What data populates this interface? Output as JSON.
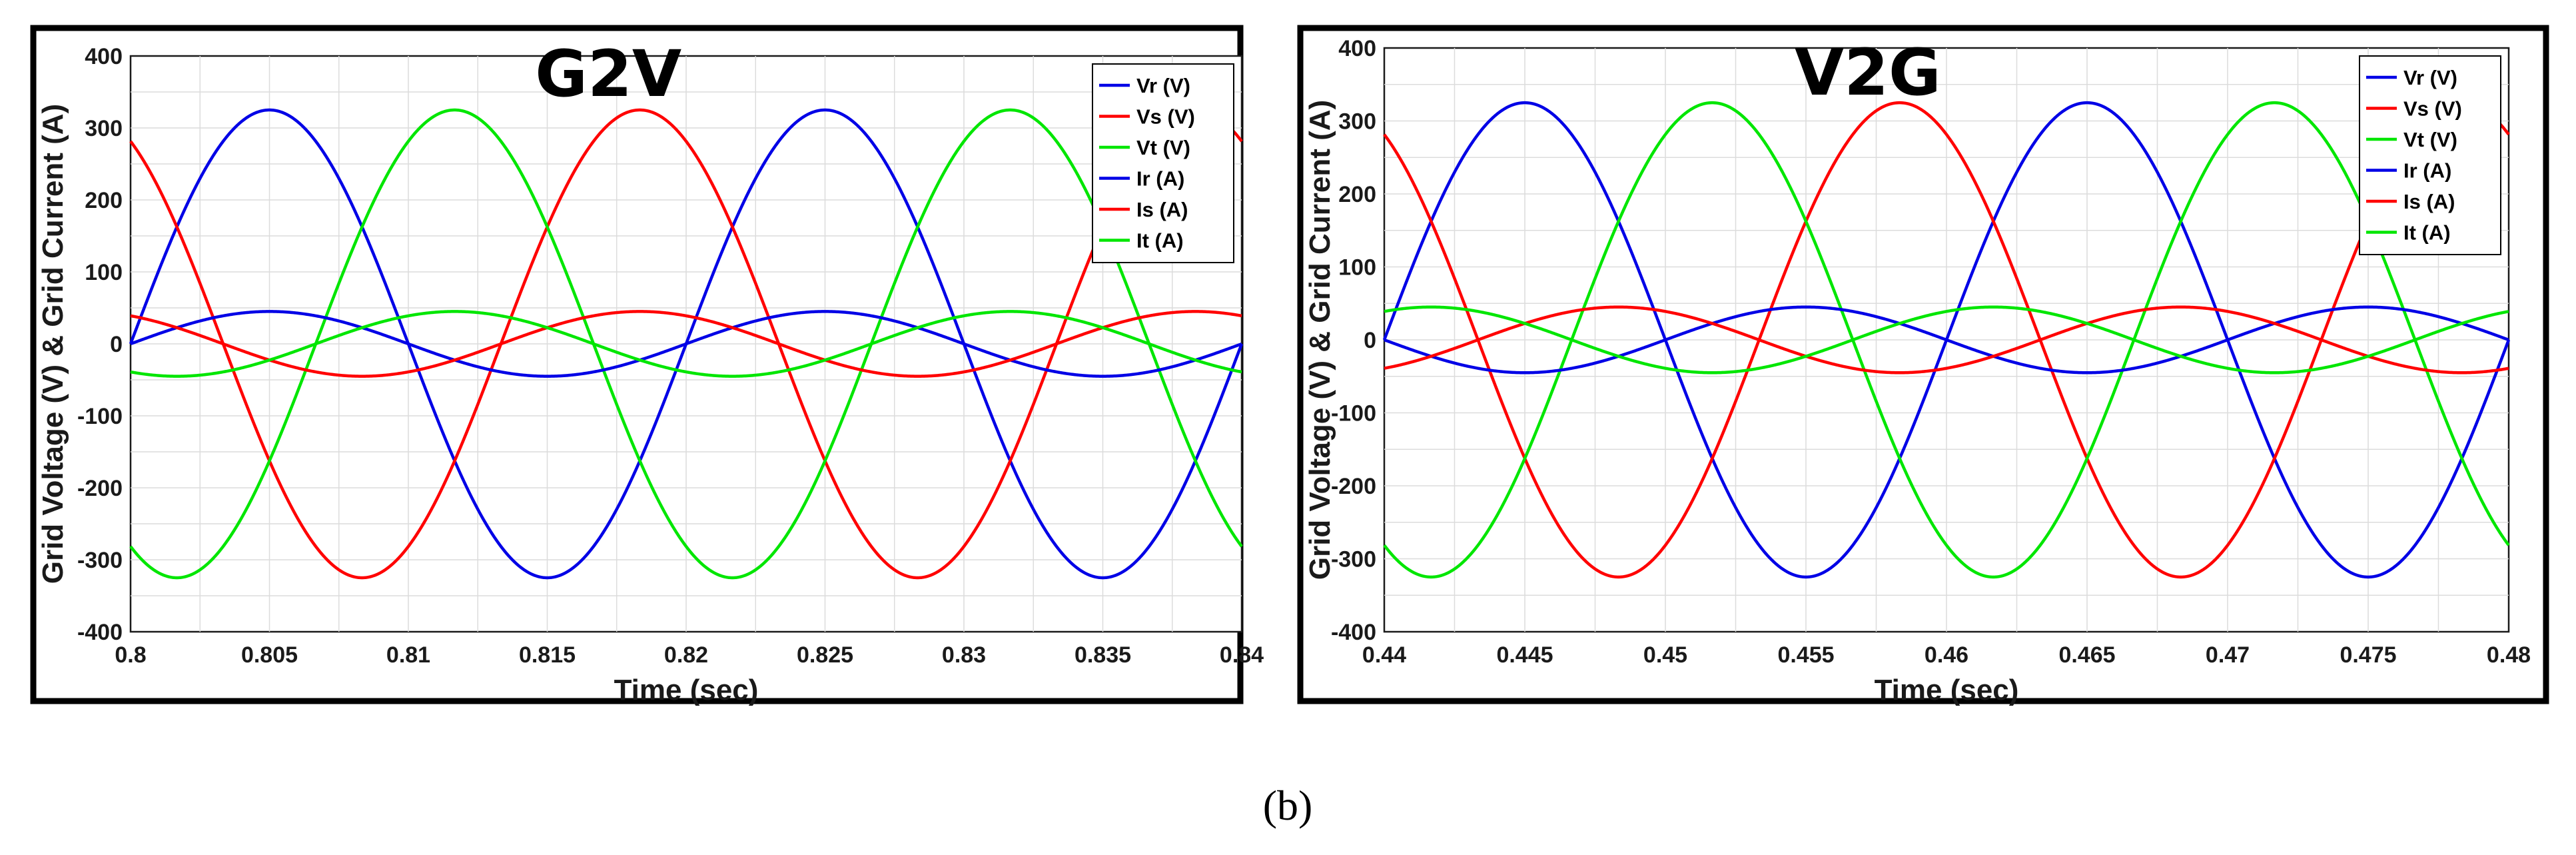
{
  "colors": {
    "blue": "#0000e6",
    "red": "#ff0000",
    "green": "#00e600"
  },
  "caption": {
    "text": "(b)"
  },
  "chart_data": [
    {
      "type": "line",
      "title": "G2V",
      "xlabel": "Time (sec)",
      "ylabel": "Grid Voltage (V) & Grid Current (A)",
      "xlim": [
        0.8,
        0.84
      ],
      "ylim": [
        -400,
        400
      ],
      "xticks": [
        0.8,
        0.805,
        0.81,
        0.815,
        0.82,
        0.825,
        0.83,
        0.835,
        0.84
      ],
      "xtick_labels": [
        "0.8",
        "0.805",
        "0.81",
        "0.815",
        "0.82",
        "0.825",
        "0.83",
        "0.835",
        "0.84"
      ],
      "yticks": [
        -400,
        -300,
        -200,
        -100,
        0,
        100,
        200,
        300,
        400
      ],
      "ytick_labels": [
        "-400",
        "-300",
        "-200",
        "-100",
        "0",
        "100",
        "200",
        "300",
        "400"
      ],
      "grid": true,
      "legend_position": "top-right",
      "frequency_hz": 50,
      "series": [
        {
          "name": "Vr (V)",
          "color": "#0000e6",
          "amplitude": 325,
          "phase_deg": 0,
          "reference_time": 0.8
        },
        {
          "name": "Vs (V)",
          "color": "#ff0000",
          "amplitude": 325,
          "phase_deg": 120,
          "reference_time": 0.8
        },
        {
          "name": "Vt (V)",
          "color": "#00e600",
          "amplitude": 325,
          "phase_deg": -120,
          "reference_time": 0.8
        },
        {
          "name": "Ir (A)",
          "color": "#0000e6",
          "amplitude": 45,
          "phase_deg": 0,
          "reference_time": 0.8
        },
        {
          "name": "Is (A)",
          "color": "#ff0000",
          "amplitude": 45,
          "phase_deg": 120,
          "reference_time": 0.8
        },
        {
          "name": "It (A)",
          "color": "#00e600",
          "amplitude": 45,
          "phase_deg": -120,
          "reference_time": 0.8
        }
      ]
    },
    {
      "type": "line",
      "title": "V2G",
      "xlabel": "Time (sec)",
      "ylabel": "Grid Voltage (V) & Grid Current (A)",
      "xlim": [
        0.44,
        0.48
      ],
      "ylim": [
        -400,
        400
      ],
      "xticks": [
        0.44,
        0.445,
        0.45,
        0.455,
        0.46,
        0.465,
        0.47,
        0.475,
        0.48
      ],
      "xtick_labels": [
        "0.44",
        "0.445",
        "0.45",
        "0.455",
        "0.46",
        "0.465",
        "0.47",
        "0.475",
        "0.48"
      ],
      "yticks": [
        -400,
        -300,
        -200,
        -100,
        0,
        100,
        200,
        300,
        400
      ],
      "ytick_labels": [
        "-400",
        "-300",
        "-200",
        "-100",
        "0",
        "100",
        "200",
        "300",
        "400"
      ],
      "grid": true,
      "legend_position": "top-right",
      "frequency_hz": 50,
      "series": [
        {
          "name": "Vr (V)",
          "color": "#0000e6",
          "amplitude": 325,
          "phase_deg": 0,
          "reference_time": 0.44
        },
        {
          "name": "Vs (V)",
          "color": "#ff0000",
          "amplitude": 325,
          "phase_deg": 120,
          "reference_time": 0.44
        },
        {
          "name": "Vt (V)",
          "color": "#00e600",
          "amplitude": 325,
          "phase_deg": -120,
          "reference_time": 0.44
        },
        {
          "name": "Ir (A)",
          "color": "#0000e6",
          "amplitude": 45,
          "phase_deg": 180,
          "reference_time": 0.44
        },
        {
          "name": "Is (A)",
          "color": "#ff0000",
          "amplitude": 45,
          "phase_deg": -60,
          "reference_time": 0.44
        },
        {
          "name": "It (A)",
          "color": "#00e600",
          "amplitude": 45,
          "phase_deg": 60,
          "reference_time": 0.44
        }
      ]
    }
  ]
}
